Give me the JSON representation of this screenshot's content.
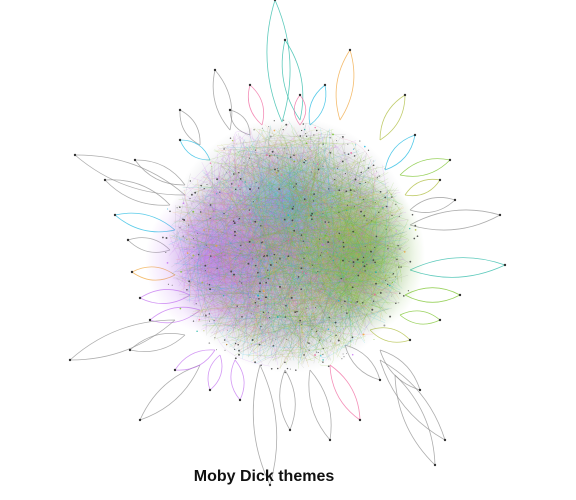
{
  "title": "Moby Dick themes",
  "palette": {
    "background": "#ffffff",
    "edge_gray": "#8a8a8a",
    "node_dark": "#333333",
    "violet": "#c06cf0",
    "green": "#6fbf1a",
    "teal": "#19b3a0",
    "cyan": "#12b5e0",
    "pink": "#f0609a",
    "orange": "#f0a030",
    "olive": "#a8b830"
  }
}
